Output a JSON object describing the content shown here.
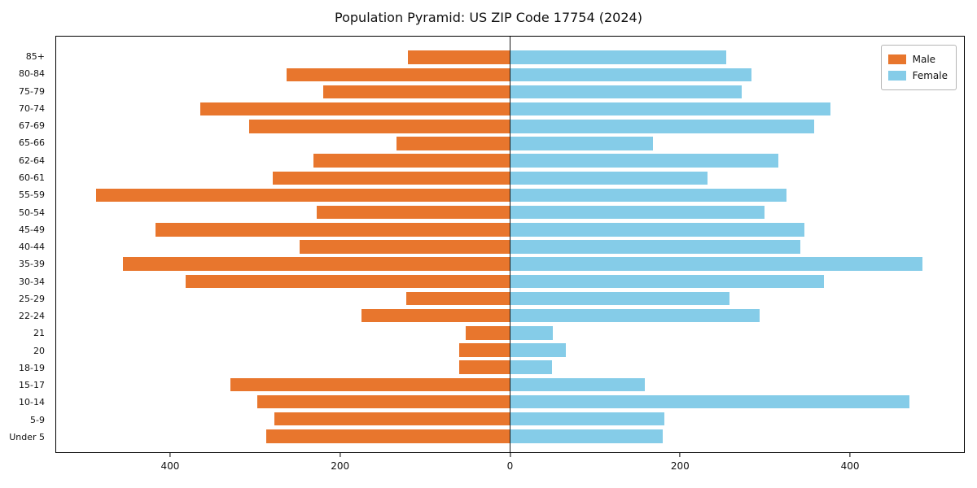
{
  "title": "Population Pyramid: US ZIP Code 17754 (2024)",
  "chart_data": {
    "type": "bar",
    "subtype": "population-pyramid",
    "title": "Population Pyramid: US ZIP Code 17754 (2024)",
    "orientation": "horizontal",
    "grid": false,
    "legend_position": "upper right",
    "categories_top_to_bottom": [
      "85+",
      "80-84",
      "75-79",
      "70-74",
      "67-69",
      "65-66",
      "62-64",
      "60-61",
      "55-59",
      "50-54",
      "45-49",
      "40-44",
      "35-39",
      "30-34",
      "25-29",
      "22-24",
      "21",
      "20",
      "18-19",
      "15-17",
      "10-14",
      "5-9",
      "Under 5"
    ],
    "series": [
      {
        "name": "Male",
        "side": "left",
        "color": "#e8762d",
        "values": [
          120,
          263,
          220,
          365,
          308,
          134,
          232,
          280,
          488,
          228,
          418,
          248,
          456,
          382,
          122,
          175,
          52,
          60,
          60,
          330,
          298,
          278,
          287
        ]
      },
      {
        "name": "Female",
        "side": "right",
        "color": "#85cce8",
        "values": [
          255,
          285,
          273,
          378,
          358,
          168,
          316,
          233,
          326,
          300,
          347,
          342,
          486,
          370,
          259,
          294,
          50,
          66,
          49,
          159,
          471,
          182,
          180
        ]
      }
    ],
    "xlim": [
      -535,
      535
    ],
    "xticks": [
      {
        "value": -400,
        "label": "400"
      },
      {
        "value": -200,
        "label": "200"
      },
      {
        "value": 0,
        "label": "0"
      },
      {
        "value": 200,
        "label": "200"
      },
      {
        "value": 400,
        "label": "400"
      }
    ]
  }
}
